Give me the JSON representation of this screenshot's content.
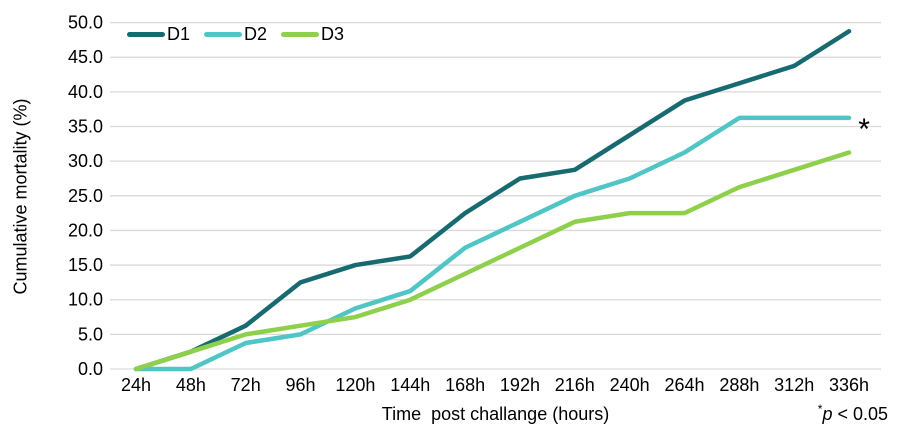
{
  "chart_data": {
    "type": "line",
    "title": "",
    "xlabel": "Time  post challange (hours)",
    "ylabel": "Cumulative mortality (%)",
    "categories": [
      "24h",
      "48h",
      "72h",
      "96h",
      "120h",
      "144h",
      "168h",
      "192h",
      "216h",
      "240h",
      "264h",
      "288h",
      "312h",
      "336h"
    ],
    "series": [
      {
        "name": "D1",
        "color": "#176A70",
        "values": [
          0,
          2.5,
          6.25,
          12.5,
          15.0,
          16.25,
          22.5,
          27.5,
          28.75,
          33.75,
          38.75,
          41.25,
          43.75,
          48.75
        ]
      },
      {
        "name": "D2",
        "color": "#4FC5C5",
        "values": [
          0,
          0,
          3.75,
          5.0,
          8.75,
          11.25,
          17.5,
          21.25,
          25.0,
          27.5,
          31.25,
          36.25,
          36.25,
          36.25
        ]
      },
      {
        "name": "D3",
        "color": "#8ED04B",
        "values": [
          0,
          2.5,
          5.0,
          6.25,
          7.5,
          10.0,
          13.75,
          17.5,
          21.25,
          22.5,
          22.5,
          26.25,
          28.75,
          31.25
        ]
      }
    ],
    "ylim": [
      0,
      50
    ],
    "ytick_step": 5,
    "ytick_labels": [
      "0.0",
      "5.0",
      "10.0",
      "15.0",
      "20.0",
      "25.0",
      "30.0",
      "35.0",
      "40.0",
      "45.0",
      "50.0"
    ],
    "grid": "horizontal",
    "gridline_color": "#D9D9D9",
    "legend_position": "top-left",
    "annotations": [
      {
        "text": "*",
        "x_category": "336h",
        "y_value": 36.25,
        "series": "D2",
        "position": "right-of-line-end"
      }
    ],
    "footnote": {
      "marker": "*",
      "p": "p",
      "rest": " < 0.05",
      "full": "*p < 0.05"
    }
  }
}
